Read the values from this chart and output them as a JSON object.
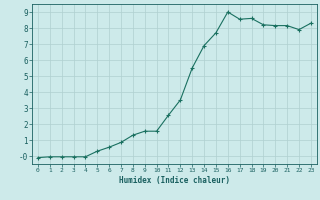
{
  "x": [
    0,
    1,
    2,
    3,
    4,
    5,
    6,
    7,
    8,
    9,
    10,
    11,
    12,
    13,
    14,
    15,
    16,
    17,
    18,
    19,
    20,
    21,
    22,
    23
  ],
  "y": [
    -0.1,
    -0.05,
    -0.05,
    -0.05,
    -0.05,
    0.3,
    0.55,
    0.85,
    1.3,
    1.55,
    1.55,
    2.55,
    3.5,
    5.5,
    6.9,
    7.7,
    9.0,
    8.55,
    8.6,
    8.2,
    8.15,
    8.15,
    7.9,
    8.3
  ],
  "xlabel": "Humidex (Indice chaleur)",
  "line_color": "#1a7060",
  "bg_color": "#cdeaea",
  "grid_color": "#b0d0d0",
  "text_color": "#1a6060",
  "ylim": [
    -0.5,
    9.5
  ],
  "xlim": [
    -0.5,
    23.5
  ],
  "yticks": [
    0,
    1,
    2,
    3,
    4,
    5,
    6,
    7,
    8,
    9
  ],
  "xticks": [
    0,
    1,
    2,
    3,
    4,
    5,
    6,
    7,
    8,
    9,
    10,
    11,
    12,
    13,
    14,
    15,
    16,
    17,
    18,
    19,
    20,
    21,
    22,
    23
  ]
}
